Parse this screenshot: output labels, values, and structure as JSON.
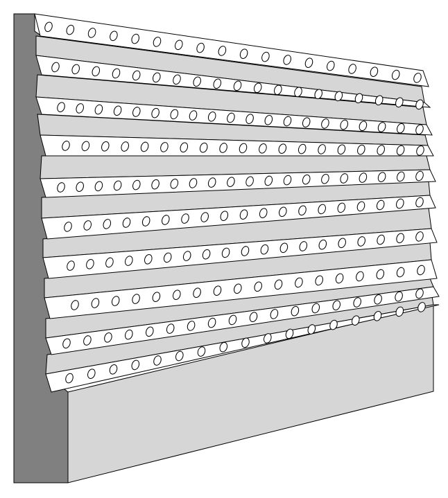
{
  "figure": {
    "subject": "perforated-louver-panel-isometric",
    "strip_count": 10,
    "holes_per_strip": [
      18,
      19,
      20,
      19,
      20,
      19,
      19,
      18,
      18,
      17
    ],
    "colors": {
      "background": "#ffffff",
      "outline": "#000000",
      "strip_face": "#ffffff",
      "shadow_face": "#d6d6d6",
      "side_face": "#808080",
      "base_front": "#d6d6d6"
    }
  }
}
